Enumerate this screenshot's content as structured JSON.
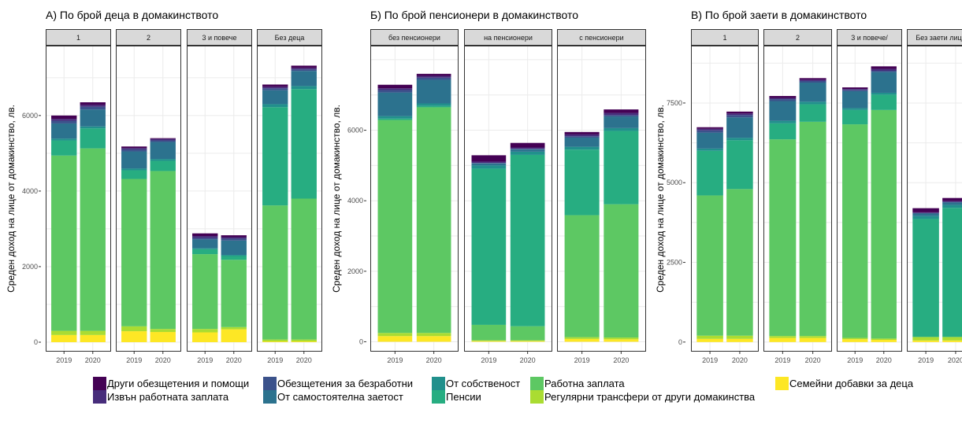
{
  "colors": {
    "Други обезщетения и помощи": "#440154",
    "Извън работната заплата": "#472D7B",
    "Обезщетения за безработни": "#3B528B",
    "От самостоятелна заетост": "#2C728E",
    "От собственост": "#21908C",
    "Пенсии": "#27AD81",
    "Работна заплата": "#5DC863",
    "Регулярни трансфери от други домакинства": "#AADC32",
    "Семейни добавки за деца": "#FDE725"
  },
  "legend": {
    "items": [
      "Други обезщетения и помощи",
      "Извън работната заплата",
      "Обезщетения за безработни",
      "От самостоятелна заетост",
      "От собственост",
      "Пенсии",
      "Работна заплата",
      "Регулярни трансфери от други домакинства",
      "Семейни добавки за деца"
    ]
  },
  "chart_data": [
    {
      "type": "bar",
      "stacked": true,
      "title": "А) По брой деца в домакинството",
      "ylabel": "Среден доход на лице от домакинство, лв.",
      "ylim": [
        -250,
        7850
      ],
      "yticks": [
        0,
        2000,
        4000,
        6000
      ],
      "ytick_labels": [
        "0",
        "2000",
        "4000",
        "6000"
      ],
      "categories": [
        "2019",
        "2020"
      ],
      "facets": [
        {
          "label": "1",
          "bars": [
            {
              "year": "2019",
              "values": {
                "Семейни добавки за деца": 190,
                "Регулярни трансфери от други домакинства": 110,
                "Работна заплата": 4640,
                "Пенсии": 400,
                "От собственост": 50,
                "От самостоятелна заетост": 400,
                "Обезщетения за безработни": 70,
                "Извън работната заплата": 50,
                "Други обезщетения и помощи": 90
              }
            },
            {
              "year": "2020",
              "values": {
                "Семейни добавки за деца": 190,
                "Регулярни трансфери от други домакинства": 110,
                "Работна заплата": 4830,
                "Пенсии": 530,
                "От собственост": 50,
                "От самостоятелна заетост": 450,
                "Обезщетения за безработни": 70,
                "Извън работната заплата": 50,
                "Други обезщетения и помощи": 70
              }
            }
          ]
        },
        {
          "label": "2",
          "bars": [
            {
              "year": "2019",
              "values": {
                "Семейни добавки за деца": 290,
                "Регулярни трансфери от други домакинства": 130,
                "Работна заплата": 3900,
                "Пенсии": 230,
                "От собственост": 50,
                "От самостоятелна заетост": 450,
                "Обезщетения за безработни": 50,
                "Извън работната заплата": 40,
                "Други обезщетения и помощи": 40
              }
            },
            {
              "year": "2020",
              "values": {
                "Семейни добавки за деца": 270,
                "Регулярни трансфери от други домакинства": 80,
                "Работна заплата": 4180,
                "Пенсии": 270,
                "От собственост": 50,
                "От самостоятелна заетост": 450,
                "Обезщетения за безработни": 40,
                "Извън работната заплата": 40,
                "Други обезщетения и помощи": 20
              }
            }
          ]
        },
        {
          "label": "3 и повече",
          "bars": [
            {
              "year": "2019",
              "values": {
                "Семейни добавки за деца": 260,
                "Регулярни трансфери от други домакинства": 90,
                "Работна заплата": 1980,
                "Пенсии": 130,
                "От собственост": 30,
                "От самостоятелна заетост": 230,
                "Обезщетения за безработни": 40,
                "Извън работната заплата": 50,
                "Други обезщетения и помощи": 70
              }
            },
            {
              "year": "2020",
              "values": {
                "Семейни добавки за деца": 340,
                "Регулярни трансфери от други домакинства": 60,
                "Работна заплата": 1780,
                "Пенсии": 100,
                "От собственост": 30,
                "От самостоятелна заетост": 380,
                "Обезщетения за безработни": 50,
                "Извън работната заплата": 40,
                "Други обезщетения и помощи": 50
              }
            }
          ]
        },
        {
          "label": "Без деца",
          "bars": [
            {
              "year": "2019",
              "values": {
                "Семейни добавки за деца": 20,
                "Регулярни трансфери от други домакинства": 50,
                "Работна заплата": 3550,
                "Пенсии": 2600,
                "От собственост": 80,
                "От самостоятелна заетост": 370,
                "Обезщетения за безработни": 50,
                "Извън работната заплата": 40,
                "Други обезщетения и помощи": 60
              }
            },
            {
              "year": "2020",
              "values": {
                "Семейни добавки за деца": 20,
                "Регулярни трансфери от други домакинства": 50,
                "Работна заплата": 3730,
                "Пенсии": 2900,
                "От собственост": 80,
                "От самостоятелна заетост": 400,
                "Обезщетения за безработни": 40,
                "Извън работната заплата": 40,
                "Други обезщетения и помощи": 60
              }
            }
          ]
        }
      ]
    },
    {
      "type": "bar",
      "stacked": true,
      "title": "Б) По брой пенсионери в домакинството",
      "ylabel": "Среден доход на лице от домакинство, лв.",
      "ylim": [
        -280,
        8400
      ],
      "yticks": [
        0,
        2000,
        4000,
        6000
      ],
      "ytick_labels": [
        "0",
        "2000",
        "4000",
        "6000"
      ],
      "categories": [
        "2019",
        "2020"
      ],
      "facets": [
        {
          "label": "без пенсионери",
          "bars": [
            {
              "year": "2019",
              "values": {
                "Семейни добавки за деца": 160,
                "Регулярни трансфери от други домакинства": 90,
                "Работна заплата": 6040,
                "Пенсии": 40,
                "От собственост": 70,
                "От самостоятелна заетост": 670,
                "Обезщетения за безработни": 70,
                "Извън работната заплата": 50,
                "Други обезщетения и помощи": 100
              }
            },
            {
              "year": "2020",
              "values": {
                "Семейни добавки за деца": 160,
                "Регулярни трансфери от други домакинства": 90,
                "Работна заплата": 6400,
                "Пенсии": 40,
                "От собственост": 70,
                "От самостоятелна заетост": 670,
                "Обезщетения за безработни": 60,
                "Извън работната заплата": 50,
                "Други обезщетения и помощи": 60
              }
            }
          ]
        },
        {
          "label": "на пенсионери",
          "bars": [
            {
              "year": "2019",
              "values": {
                "Семейни добавки за деца": 20,
                "Регулярни трансфери от други домакинства": 20,
                "Работна заплата": 440,
                "Пенсии": 4430,
                "От собственост": 90,
                "От самостоятелна заетост": 60,
                "Обезщетения за безработни": 10,
                "Извън работната заплата": 40,
                "Други обезщетения и помощи": 180
              }
            },
            {
              "year": "2020",
              "values": {
                "Семейни добавки за деца": 20,
                "Регулярни трансфери от други домакинства": 20,
                "Работна заплата": 400,
                "Пенсии": 4860,
                "От собственост": 90,
                "От самостоятелна заетост": 70,
                "Обезщетения за безработни": 10,
                "Извън работната заплата": 40,
                "Други обезщетения и помощи": 130
              }
            }
          ]
        },
        {
          "label": "с пенсионери",
          "bars": [
            {
              "year": "2019",
              "values": {
                "Семейни добавки за деца": 80,
                "Регулярни трансфери от други домакинства": 50,
                "Работна заплата": 3460,
                "Пенсии": 1860,
                "От собственост": 80,
                "От самостоятелна заетост": 260,
                "Обезщетения за безработни": 40,
                "Извън работната заплата": 50,
                "Други обезщетения и помощи": 70
              }
            },
            {
              "year": "2020",
              "values": {
                "Семейни добавки за деца": 70,
                "Регулярни трансфери от други домакинства": 50,
                "Работна заплата": 3780,
                "Пенсии": 2080,
                "От собственост": 80,
                "От самостоятелна заетост": 330,
                "Обезщетения за безработни": 40,
                "Извън работната заплата": 60,
                "Други обезщетения и помощи": 100
              }
            }
          ]
        }
      ]
    },
    {
      "type": "bar",
      "stacked": true,
      "title": "В) По брой заети в домакинството",
      "ylabel": "Среден доход на лице от домакинство, лв.",
      "ylim": [
        -300,
        9300
      ],
      "yticks": [
        0,
        2500,
        5000,
        7500
      ],
      "ytick_labels": [
        "0",
        "2500",
        "5000",
        "7500"
      ],
      "categories": [
        "2019",
        "2020"
      ],
      "facets": [
        {
          "label": "1",
          "bars": [
            {
              "year": "2019",
              "values": {
                "Семейни добавки за деца": 100,
                "Регулярни трансфери от други домакинства": 100,
                "Работна заплата": 4400,
                "Пенсии": 1400,
                "От собственост": 70,
                "От самостоятелна заетост": 500,
                "Обезщетения за безработни": 70,
                "Извън работната заплата": 50,
                "Други обезщетения и помощи": 50
              }
            },
            {
              "year": "2020",
              "values": {
                "Семейни добавки за деца": 100,
                "Регулярни трансфери от други домакинства": 100,
                "Работна заплата": 4600,
                "Пенсии": 1530,
                "От собственост": 80,
                "От самостоятелна заетост": 640,
                "Обезщетения за безработни": 70,
                "Извън работната заплата": 50,
                "Други обезщетения и помощи": 60
              }
            }
          ]
        },
        {
          "label": "2",
          "bars": [
            {
              "year": "2019",
              "values": {
                "Семейни добавки за деца": 130,
                "Регулярни трансфери от другии домакинства": 0,
                "Регулярни трансфери от други домакинства": 60,
                "Работна заплата": 6170,
                "Пенсии": 500,
                "От собственост": 80,
                "От самостоятелна заетост": 620,
                "Обезщетения за безработни": 60,
                "Извън работната заплата": 40,
                "Други обезщетения и помощи": 60
              }
            },
            {
              "year": "2020",
              "values": {
                "Семейни добавки за деца": 130,
                "Регулярни трансфери от други домакинства": 60,
                "Работна заплата": 6720,
                "Пенсии": 550,
                "От собственост": 80,
                "От самостоятелна заетост": 600,
                "Обезщетения за безработни": 50,
                "Извън работната заплата": 40,
                "Други обезщетения и помощи": 50
              }
            }
          ]
        },
        {
          "label": "3 и повече/",
          "bars": [
            {
              "year": "2019",
              "values": {
                "Семейни добавки за деца": 90,
                "Регулярни трансфери от други домакинства": 40,
                "Работна заплата": 6700,
                "Пенсии": 450,
                "От собственост": 60,
                "От самостоятелна заетост": 530,
                "Обезщетения за безработни": 40,
                "Извън работната заплата": 30,
                "Други обезщетения и помощи": 50
              }
            },
            {
              "year": "2020",
              "values": {
                "Семейни добавки за деца": 70,
                "Регулярни трансфери от други домакинства": 40,
                "Работна заплата": 7170,
                "Пенсии": 480,
                "От собственост": 60,
                "От самостоятелна заетост": 650,
                "Обезщетения за безработни": 40,
                "Извън работната заплата": 60,
                "Други обезщетения и помощи": 80
              }
            }
          ]
        },
        {
          "label": "Без заети лица",
          "bars": [
            {
              "year": "2019",
              "values": {
                "Семейни добавки за деца": 50,
                "Регулярни трансфери от други домакинства": 110,
                "Работна заплата": 0,
                "Пенсии": 3700,
                "От собственост": 90,
                "От самостоятелна заетост": 80,
                "Обезщетения за безработни": 20,
                "Извън работната заплата": 20,
                "Други обезщетения и помощи": 130
              }
            },
            {
              "year": "2020",
              "values": {
                "Семейни добавки за деца": 50,
                "Регулярни трансфери от други домакинства": 110,
                "Работна заплата": 0,
                "Пенсии": 4050,
                "От собственост": 90,
                "От самостоятелна заетост": 80,
                "Обезщетения за безработни": 20,
                "Извън работната заплата": 20,
                "Други обезщетения и помощи": 100
              }
            }
          ]
        }
      ]
    }
  ]
}
